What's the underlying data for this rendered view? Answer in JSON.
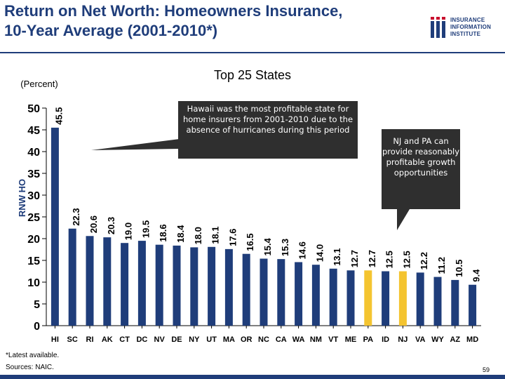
{
  "title": {
    "line1": "Return on Net Worth: Homeowners Insurance,",
    "line2": "10-Year Average (2001-2010*)"
  },
  "logo": {
    "line1": "INSURANCE",
    "line2": "INFORMATION",
    "line3": "INSTITUTE",
    "color": "#1f3d7a"
  },
  "callouts": {
    "hawaii": "Hawaii was the most profitable state for home insurers from 2001-2010 due to the absence of hurricanes during this period",
    "njpa": "NJ and PA can provide reasonably profitable growth opportunities"
  },
  "footnote": {
    "latest": "*Latest available.",
    "sources": "Sources: NAIC."
  },
  "page_number": "59",
  "chart_data": {
    "type": "bar",
    "title": "Top 25 States",
    "units_label": "(Percent)",
    "xlabel": "",
    "ylabel": "RNW HO",
    "ylim": [
      0,
      50
    ],
    "yticks": [
      0,
      5,
      10,
      15,
      20,
      25,
      30,
      35,
      40,
      45,
      50
    ],
    "categories": [
      "HI",
      "SC",
      "RI",
      "AK",
      "CT",
      "DC",
      "NV",
      "DE",
      "NY",
      "UT",
      "MA",
      "OR",
      "NC",
      "CA",
      "WA",
      "NM",
      "VT",
      "ME",
      "PA",
      "ID",
      "NJ",
      "VA",
      "WY",
      "AZ",
      "MD"
    ],
    "values": [
      45.5,
      22.3,
      20.6,
      20.3,
      19.0,
      19.5,
      18.6,
      18.4,
      18.0,
      18.1,
      17.6,
      16.5,
      15.4,
      15.3,
      14.6,
      14.0,
      13.1,
      12.7,
      12.7,
      12.5,
      12.5,
      12.2,
      11.2,
      10.5,
      9.4
    ],
    "labels": [
      "45.5",
      "22.3",
      "20.6",
      "20.3",
      "19.0",
      "19.5",
      "18.6",
      "18.4",
      "18.0",
      "18.1",
      "17.6",
      "16.5",
      "15.4",
      "15.3",
      "14.6",
      "14.0",
      "13.1",
      "12.7",
      "12.7",
      "12.5",
      "12.5",
      "12.2",
      "11.2",
      "10.5",
      "9.4"
    ],
    "highlight": [
      "PA",
      "NJ"
    ],
    "bar_color": "#1f3d7a",
    "highlight_color": "#f4c430",
    "grid": false
  }
}
